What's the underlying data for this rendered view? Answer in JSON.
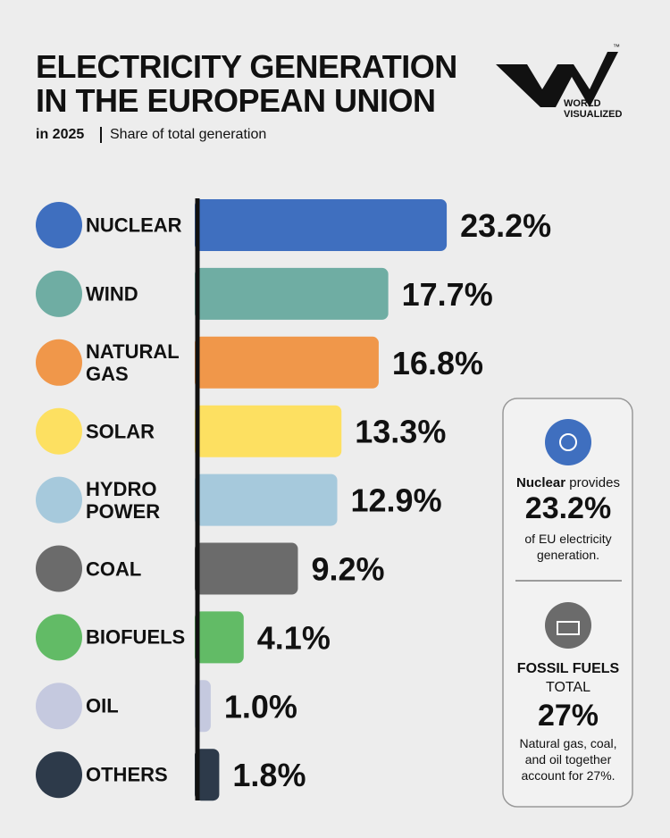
{
  "chart_data": {
    "type": "bar",
    "orientation": "horizontal",
    "title": [
      "ELECTRICITY GENERATION",
      "IN THE EUROPEAN UNION"
    ],
    "subtitle_year": "in 2025",
    "subtitle": "Share of total generation",
    "categories": [
      "NUCLEAR",
      "WIND",
      "NATURAL GAS",
      "SOLAR",
      "HYDRO POWER",
      "COAL",
      "BIOFUELS",
      "OIL",
      "OTHERS"
    ],
    "values": [
      23.2,
      17.7,
      16.8,
      13.3,
      12.9,
      9.2,
      4.1,
      1.0,
      1.8
    ],
    "value_labels": [
      "23.2%",
      "17.7%",
      "16.8%",
      "13.3%",
      "12.9%",
      "9.2%",
      "4.1%",
      "1.0%",
      "1.8%"
    ],
    "colors": [
      "#3f6fbf",
      "#6fada3",
      "#f0974a",
      "#fde061",
      "#a6c9dc",
      "#6b6b6b",
      "#62bb66",
      "#c5c9df",
      "#2d3a4a"
    ]
  },
  "logo": {
    "line1": "WORLD",
    "line2": "VISUALIZED",
    "mark": "™"
  },
  "sidebar": {
    "nuclear_lead": "Nuclear",
    "nuclear_text": "provides",
    "nuclear_value": "23.2%",
    "nuclear_note": "of EU electricity generation.",
    "fossil_title": "FOSSIL FUELS",
    "fossil_sub": "TOTAL",
    "fossil_value": "27%",
    "fossil_note": "Natural gas, coal, and oil together account for 27%."
  }
}
